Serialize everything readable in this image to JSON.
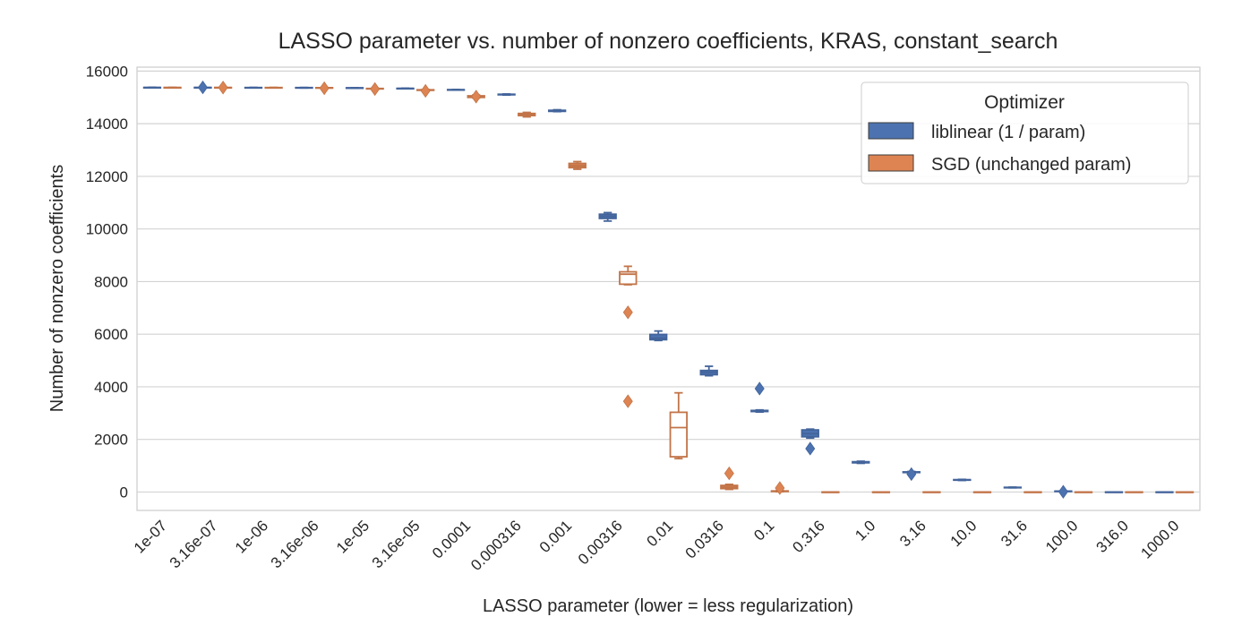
{
  "chart_data": {
    "type": "box",
    "title": "LASSO parameter vs. number of nonzero coefficients, KRAS, constant_search",
    "xlabel": "LASSO parameter (lower = less regularization)",
    "ylabel": "Number of nonzero coefficients",
    "ylim": [
      -700,
      16150
    ],
    "yticks": [
      0,
      2000,
      4000,
      6000,
      8000,
      10000,
      12000,
      14000,
      16000
    ],
    "grid": true,
    "legend": {
      "title": "Optimizer",
      "position": "top-right"
    },
    "categories": [
      "1e-07",
      "3.16e-07",
      "1e-06",
      "3.16e-06",
      "1e-05",
      "3.16e-05",
      "0.0001",
      "0.000316",
      "0.001",
      "0.00316",
      "0.01",
      "0.0316",
      "0.1",
      "0.316",
      "1.0",
      "3.16",
      "10.0",
      "31.6",
      "100.0",
      "316.0",
      "1000.0"
    ],
    "series": [
      {
        "name": "liblinear (1 / param)",
        "color": "#4c72b0",
        "boxes": [
          {
            "cat": 0,
            "whislo": 15370,
            "q1": 15370,
            "med": 15375,
            "q3": 15380,
            "whishi": 15385,
            "fliers": []
          },
          {
            "cat": 1,
            "whislo": 15365,
            "q1": 15370,
            "med": 15375,
            "q3": 15380,
            "whishi": 15385,
            "fliers": [
              15380
            ]
          },
          {
            "cat": 2,
            "whislo": 15365,
            "q1": 15368,
            "med": 15372,
            "q3": 15376,
            "whishi": 15380,
            "fliers": []
          },
          {
            "cat": 3,
            "whislo": 15360,
            "q1": 15365,
            "med": 15370,
            "q3": 15374,
            "whishi": 15378,
            "fliers": []
          },
          {
            "cat": 4,
            "whislo": 15350,
            "q1": 15355,
            "med": 15360,
            "q3": 15365,
            "whishi": 15370,
            "fliers": []
          },
          {
            "cat": 5,
            "whislo": 15330,
            "q1": 15335,
            "med": 15340,
            "q3": 15345,
            "whishi": 15350,
            "fliers": []
          },
          {
            "cat": 6,
            "whislo": 15280,
            "q1": 15285,
            "med": 15290,
            "q3": 15295,
            "whishi": 15300,
            "fliers": []
          },
          {
            "cat": 7,
            "whislo": 15090,
            "q1": 15100,
            "med": 15110,
            "q3": 15120,
            "whishi": 15130,
            "fliers": []
          },
          {
            "cat": 8,
            "whislo": 14460,
            "q1": 14470,
            "med": 14490,
            "q3": 14510,
            "whishi": 14530,
            "fliers": []
          },
          {
            "cat": 9,
            "whislo": 10300,
            "q1": 10400,
            "med": 10480,
            "q3": 10560,
            "whishi": 10620,
            "fliers": []
          },
          {
            "cat": 10,
            "whislo": 5760,
            "q1": 5790,
            "med": 5850,
            "q3": 5990,
            "whishi": 6120,
            "fliers": []
          },
          {
            "cat": 11,
            "whislo": 4420,
            "q1": 4460,
            "med": 4550,
            "q3": 4620,
            "whishi": 4780,
            "fliers": []
          },
          {
            "cat": 12,
            "whislo": 3040,
            "q1": 3060,
            "med": 3080,
            "q3": 3100,
            "whishi": 3120,
            "fliers": [
              3930
            ]
          },
          {
            "cat": 13,
            "whislo": 2050,
            "q1": 2100,
            "med": 2220,
            "q3": 2360,
            "whishi": 2390,
            "fliers": [
              1650
            ]
          },
          {
            "cat": 14,
            "whislo": 1090,
            "q1": 1110,
            "med": 1130,
            "q3": 1150,
            "whishi": 1170,
            "fliers": []
          },
          {
            "cat": 15,
            "whislo": 730,
            "q1": 740,
            "med": 750,
            "q3": 765,
            "whishi": 780,
            "fliers": [
              680
            ]
          },
          {
            "cat": 16,
            "whislo": 440,
            "q1": 450,
            "med": 460,
            "q3": 470,
            "whishi": 480,
            "fliers": []
          },
          {
            "cat": 17,
            "whislo": 160,
            "q1": 165,
            "med": 170,
            "q3": 178,
            "whishi": 185,
            "fliers": []
          },
          {
            "cat": 18,
            "whislo": 20,
            "q1": 25,
            "med": 30,
            "q3": 35,
            "whishi": 40,
            "fliers": [
              10
            ]
          },
          {
            "cat": 19,
            "whislo": 0,
            "q1": 0,
            "med": 0,
            "q3": 0,
            "whishi": 0,
            "fliers": []
          },
          {
            "cat": 20,
            "whislo": 0,
            "q1": 0,
            "med": 0,
            "q3": 0,
            "whishi": 0,
            "fliers": []
          }
        ]
      },
      {
        "name": "SGD (unchanged param)",
        "color": "#dd8452",
        "boxes": [
          {
            "cat": 0,
            "whislo": 15370,
            "q1": 15372,
            "med": 15375,
            "q3": 15378,
            "whishi": 15382,
            "fliers": []
          },
          {
            "cat": 1,
            "whislo": 15370,
            "q1": 15372,
            "med": 15375,
            "q3": 15378,
            "whishi": 15380,
            "fliers": [
              15375
            ]
          },
          {
            "cat": 2,
            "whislo": 15365,
            "q1": 15368,
            "med": 15372,
            "q3": 15376,
            "whishi": 15380,
            "fliers": []
          },
          {
            "cat": 3,
            "whislo": 15355,
            "q1": 15360,
            "med": 15365,
            "q3": 15370,
            "whishi": 15375,
            "fliers": [
              15350
            ]
          },
          {
            "cat": 4,
            "whislo": 15320,
            "q1": 15330,
            "med": 15335,
            "q3": 15340,
            "whishi": 15350,
            "fliers": [
              15320
            ]
          },
          {
            "cat": 5,
            "whislo": 15260,
            "q1": 15270,
            "med": 15280,
            "q3": 15290,
            "whishi": 15300,
            "fliers": [
              15250
            ]
          },
          {
            "cat": 6,
            "whislo": 14980,
            "q1": 15000,
            "med": 15020,
            "q3": 15060,
            "whishi": 15090,
            "fliers": [
              15030
            ]
          },
          {
            "cat": 7,
            "whislo": 14260,
            "q1": 14310,
            "med": 14350,
            "q3": 14390,
            "whishi": 14430,
            "fliers": []
          },
          {
            "cat": 8,
            "whislo": 12270,
            "q1": 12330,
            "med": 12400,
            "q3": 12490,
            "whishi": 12560,
            "fliers": []
          },
          {
            "cat": 9,
            "whislo": 7880,
            "q1": 7900,
            "med": 8280,
            "q3": 8370,
            "whishi": 8580,
            "fliers": [
              6830,
              3450
            ]
          },
          {
            "cat": 10,
            "whislo": 1270,
            "q1": 1340,
            "med": 2450,
            "q3": 3030,
            "whishi": 3770,
            "fliers": []
          },
          {
            "cat": 11,
            "whislo": 100,
            "q1": 130,
            "med": 180,
            "q3": 250,
            "whishi": 290,
            "fliers": [
              710
            ]
          },
          {
            "cat": 12,
            "whislo": 10,
            "q1": 20,
            "med": 30,
            "q3": 40,
            "whishi": 50,
            "fliers": [
              150
            ]
          },
          {
            "cat": 13,
            "whislo": 0,
            "q1": 0,
            "med": 0,
            "q3": 0,
            "whishi": 0,
            "fliers": []
          },
          {
            "cat": 14,
            "whislo": 0,
            "q1": 0,
            "med": 0,
            "q3": 0,
            "whishi": 0,
            "fliers": []
          },
          {
            "cat": 15,
            "whislo": 0,
            "q1": 0,
            "med": 0,
            "q3": 0,
            "whishi": 0,
            "fliers": []
          },
          {
            "cat": 16,
            "whislo": 0,
            "q1": 0,
            "med": 0,
            "q3": 0,
            "whishi": 0,
            "fliers": []
          },
          {
            "cat": 17,
            "whislo": 0,
            "q1": 0,
            "med": 0,
            "q3": 0,
            "whishi": 0,
            "fliers": []
          },
          {
            "cat": 18,
            "whislo": 0,
            "q1": 0,
            "med": 0,
            "q3": 0,
            "whishi": 0,
            "fliers": []
          },
          {
            "cat": 19,
            "whislo": 0,
            "q1": 0,
            "med": 0,
            "q3": 0,
            "whishi": 0,
            "fliers": []
          },
          {
            "cat": 20,
            "whislo": 0,
            "q1": 0,
            "med": 0,
            "q3": 0,
            "whishi": 0,
            "fliers": []
          }
        ]
      }
    ]
  }
}
